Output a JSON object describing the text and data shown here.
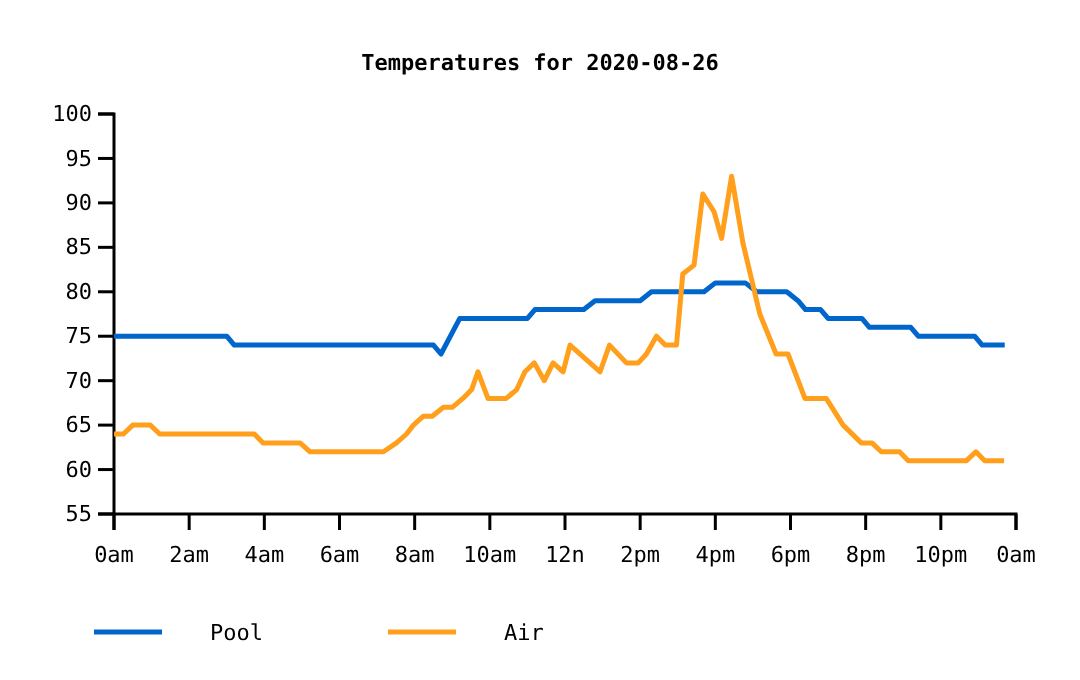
{
  "chart_data": {
    "type": "line",
    "title": "Temperatures for 2020-08-26",
    "legend": "bottom",
    "grid": false,
    "marker": "none",
    "line_style": "solid",
    "xlim": [
      "2020-08-26T00:00",
      "2020-08-27T00:00"
    ],
    "ylim": [
      55,
      100
    ],
    "yticks": [
      55,
      60,
      65,
      70,
      75,
      80,
      85,
      90,
      95,
      100
    ],
    "xticks": [
      {
        "value": "2020-08-26T00:00",
        "label": "0am"
      },
      {
        "value": "2020-08-26T02:00",
        "label": "2am"
      },
      {
        "value": "2020-08-26T04:00",
        "label": "4am"
      },
      {
        "value": "2020-08-26T06:00",
        "label": "6am"
      },
      {
        "value": "2020-08-26T08:00",
        "label": "8am"
      },
      {
        "value": "2020-08-26T10:00",
        "label": "10am"
      },
      {
        "value": "2020-08-26T12:00",
        "label": "12n"
      },
      {
        "value": "2020-08-26T14:00",
        "label": "2pm"
      },
      {
        "value": "2020-08-26T16:00",
        "label": "4pm"
      },
      {
        "value": "2020-08-26T18:00",
        "label": "6pm"
      },
      {
        "value": "2020-08-26T20:00",
        "label": "8pm"
      },
      {
        "value": "2020-08-26T22:00",
        "label": "10pm"
      },
      {
        "value": "2020-08-27T00:00",
        "label": "0am"
      }
    ],
    "series": [
      {
        "name": "Pool",
        "color": "#0066cc",
        "x": [
          "2020-08-26T00:00",
          "2020-08-26T03:00",
          "2020-08-26T03:12",
          "2020-08-26T08:30",
          "2020-08-26T08:42",
          "2020-08-26T09:12",
          "2020-08-26T11:00",
          "2020-08-26T11:12",
          "2020-08-26T12:30",
          "2020-08-26T12:48",
          "2020-08-26T14:00",
          "2020-08-26T14:18",
          "2020-08-26T15:42",
          "2020-08-26T16:00",
          "2020-08-26T16:48",
          "2020-08-26T17:06",
          "2020-08-26T17:54",
          "2020-08-26T18:12",
          "2020-08-26T18:24",
          "2020-08-26T18:48",
          "2020-08-26T19:00",
          "2020-08-26T19:54",
          "2020-08-26T20:06",
          "2020-08-26T21:12",
          "2020-08-26T21:24",
          "2020-08-26T22:54",
          "2020-08-26T23:06",
          "2020-08-26T23:42"
        ],
        "values": [
          75,
          75,
          74,
          74,
          73,
          77,
          77,
          78,
          78,
          79,
          79,
          80,
          80,
          81,
          81,
          80,
          80,
          79,
          78,
          78,
          77,
          77,
          76,
          76,
          75,
          75,
          74,
          74
        ]
      },
      {
        "name": "Air",
        "color": "#ff9f1c",
        "x": [
          "2020-08-26T00:00",
          "2020-08-26T00:15",
          "2020-08-26T00:30",
          "2020-08-26T00:58",
          "2020-08-26T01:13",
          "2020-08-26T03:44",
          "2020-08-26T03:58",
          "2020-08-26T04:57",
          "2020-08-26T05:13",
          "2020-08-26T07:10",
          "2020-08-26T07:31",
          "2020-08-26T07:47",
          "2020-08-26T07:58",
          "2020-08-26T08:14",
          "2020-08-26T08:28",
          "2020-08-26T08:46",
          "2020-08-26T09:00",
          "2020-08-26T09:17",
          "2020-08-26T09:31",
          "2020-08-26T09:41",
          "2020-08-26T09:57",
          "2020-08-26T10:26",
          "2020-08-26T10:43",
          "2020-08-26T10:56",
          "2020-08-26T11:11",
          "2020-08-26T11:27",
          "2020-08-26T11:41",
          "2020-08-26T11:57",
          "2020-08-26T12:08",
          "2020-08-26T12:56",
          "2020-08-26T13:11",
          "2020-08-26T13:38",
          "2020-08-26T13:57",
          "2020-08-26T14:10",
          "2020-08-26T14:26",
          "2020-08-26T14:40",
          "2020-08-26T14:58",
          "2020-08-26T15:08",
          "2020-08-26T15:26",
          "2020-08-26T15:40",
          "2020-08-26T15:58",
          "2020-08-26T16:10",
          "2020-08-26T16:26",
          "2020-08-26T16:44",
          "2020-08-26T17:11",
          "2020-08-26T17:37",
          "2020-08-26T17:56",
          "2020-08-26T18:23",
          "2020-08-26T18:57",
          "2020-08-26T19:24",
          "2020-08-26T19:53",
          "2020-08-26T20:10",
          "2020-08-26T20:25",
          "2020-08-26T20:54",
          "2020-08-26T21:08",
          "2020-08-26T22:41",
          "2020-08-26T22:56",
          "2020-08-26T23:10",
          "2020-08-26T23:41"
        ],
        "values": [
          64,
          64,
          65,
          65,
          64,
          64,
          63,
          63,
          62,
          62,
          63,
          64,
          65,
          66,
          66,
          67,
          67,
          68,
          69,
          71,
          68,
          68,
          69,
          71,
          72,
          70,
          72,
          71,
          74,
          71,
          74,
          72,
          72,
          73,
          75,
          74,
          74,
          82,
          83,
          91,
          89,
          86,
          93,
          85.5,
          77.5,
          73,
          73,
          68,
          68,
          65,
          63,
          63,
          62,
          62,
          61,
          61,
          62,
          61,
          61
        ]
      }
    ]
  }
}
